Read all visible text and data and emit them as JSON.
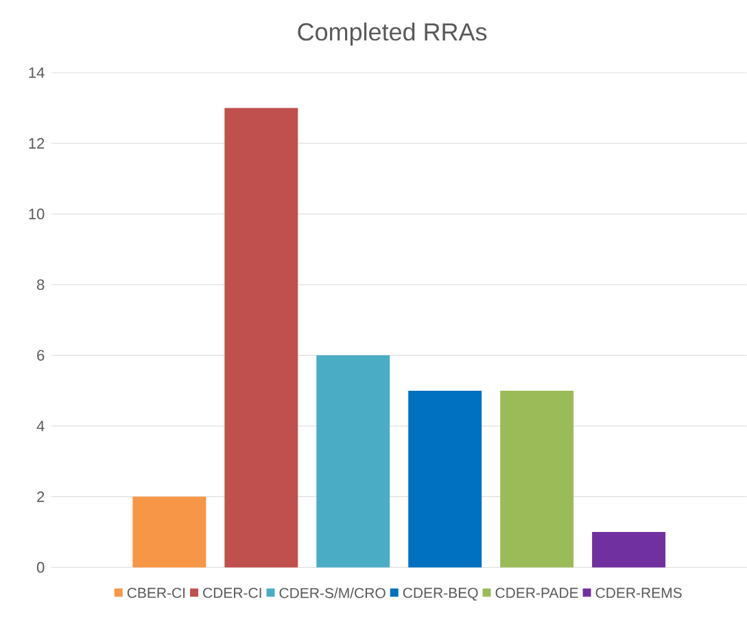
{
  "chart_data": {
    "type": "bar",
    "title": "Completed RRAs",
    "categories": [
      null
    ],
    "series": [
      {
        "name": "CBER-CI",
        "color": "#f79646",
        "values": [
          2
        ]
      },
      {
        "name": "CDER-CI",
        "color": "#c0504d",
        "values": [
          13
        ]
      },
      {
        "name": "CDER-S/M/CRO",
        "color": "#4bacc6",
        "values": [
          6
        ]
      },
      {
        "name": "CDER-BEQ",
        "color": "#0070c0",
        "values": [
          5
        ]
      },
      {
        "name": "CDER-PADE",
        "color": "#9bbb59",
        "values": [
          5
        ]
      },
      {
        "name": "CDER-REMS",
        "color": "#7030a0",
        "values": [
          1
        ]
      }
    ],
    "ylim": [
      0,
      14
    ],
    "yticks": [
      0,
      2,
      4,
      6,
      8,
      10,
      12,
      14
    ],
    "grid": "y",
    "legend": "bottom"
  }
}
